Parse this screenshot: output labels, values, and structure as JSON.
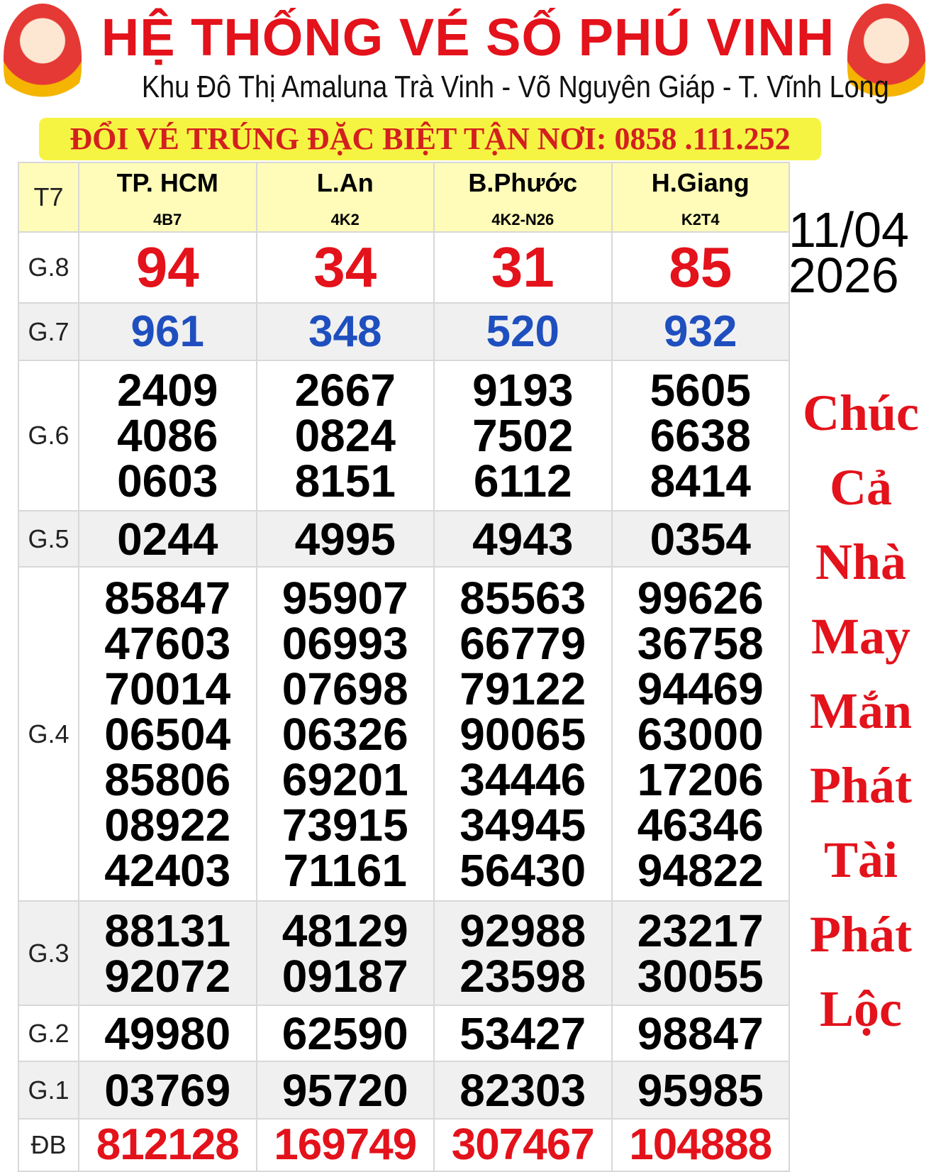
{
  "header": {
    "title": "HỆ THỐNG VÉ SỐ PHÚ VINH",
    "subtitle": "Khu Đô Thị Amaluna Trà Vinh - Võ Nguyên Giáp - T. Vĩnh Long",
    "banner": "ĐỔI VÉ TRÚNG ĐẶC BIỆT TẬN NƠI: 0858 .111.252"
  },
  "day": "T7",
  "provinces": [
    {
      "name": "TP. HCM",
      "code": "4B7"
    },
    {
      "name": "L.An",
      "code": "4K2"
    },
    {
      "name": "B.Phước",
      "code": "4K2-N26"
    },
    {
      "name": "H.Giang",
      "code": "K2T4"
    }
  ],
  "prizes": [
    {
      "label": "G.8",
      "values": [
        [
          "94"
        ],
        [
          "34"
        ],
        [
          "31"
        ],
        [
          "85"
        ]
      ]
    },
    {
      "label": "G.7",
      "values": [
        [
          "961"
        ],
        [
          "348"
        ],
        [
          "520"
        ],
        [
          "932"
        ]
      ]
    },
    {
      "label": "G.6",
      "values": [
        [
          "2409",
          "4086",
          "0603"
        ],
        [
          "2667",
          "0824",
          "8151"
        ],
        [
          "9193",
          "7502",
          "6112"
        ],
        [
          "5605",
          "6638",
          "8414"
        ]
      ]
    },
    {
      "label": "G.5",
      "values": [
        [
          "0244"
        ],
        [
          "4995"
        ],
        [
          "4943"
        ],
        [
          "0354"
        ]
      ]
    },
    {
      "label": "G.4",
      "values": [
        [
          "85847",
          "47603",
          "70014",
          "06504",
          "85806",
          "08922",
          "42403"
        ],
        [
          "95907",
          "06993",
          "07698",
          "06326",
          "69201",
          "73915",
          "71161"
        ],
        [
          "85563",
          "66779",
          "79122",
          "90065",
          "34446",
          "34945",
          "56430"
        ],
        [
          "99626",
          "36758",
          "94469",
          "63000",
          "17206",
          "46346",
          "94822"
        ]
      ]
    },
    {
      "label": "G.3",
      "values": [
        [
          "88131",
          "92072"
        ],
        [
          "48129",
          "09187"
        ],
        [
          "92988",
          "23598"
        ],
        [
          "23217",
          "30055"
        ]
      ]
    },
    {
      "label": "G.2",
      "values": [
        [
          "49980"
        ],
        [
          "62590"
        ],
        [
          "53427"
        ],
        [
          "98847"
        ]
      ]
    },
    {
      "label": "G.1",
      "values": [
        [
          "03769"
        ],
        [
          "95720"
        ],
        [
          "82303"
        ],
        [
          "95985"
        ]
      ]
    },
    {
      "label": "ĐB",
      "values": [
        [
          "812128"
        ],
        [
          "169749"
        ],
        [
          "307467"
        ],
        [
          "104888"
        ]
      ]
    }
  ],
  "date": {
    "day_month": "11/04",
    "year": "2026"
  },
  "wish": [
    "Chúc",
    "Cả",
    "Nhà",
    "May",
    "Mắn",
    "Phát",
    "Tài",
    "Phát",
    "Lộc"
  ],
  "colors": {
    "title": "#e3121b",
    "g7": "#1f4fbf",
    "banner_bg": "#f6f443",
    "header_bg": "#fefcb8"
  },
  "logo_text": "PHÚ VINH"
}
